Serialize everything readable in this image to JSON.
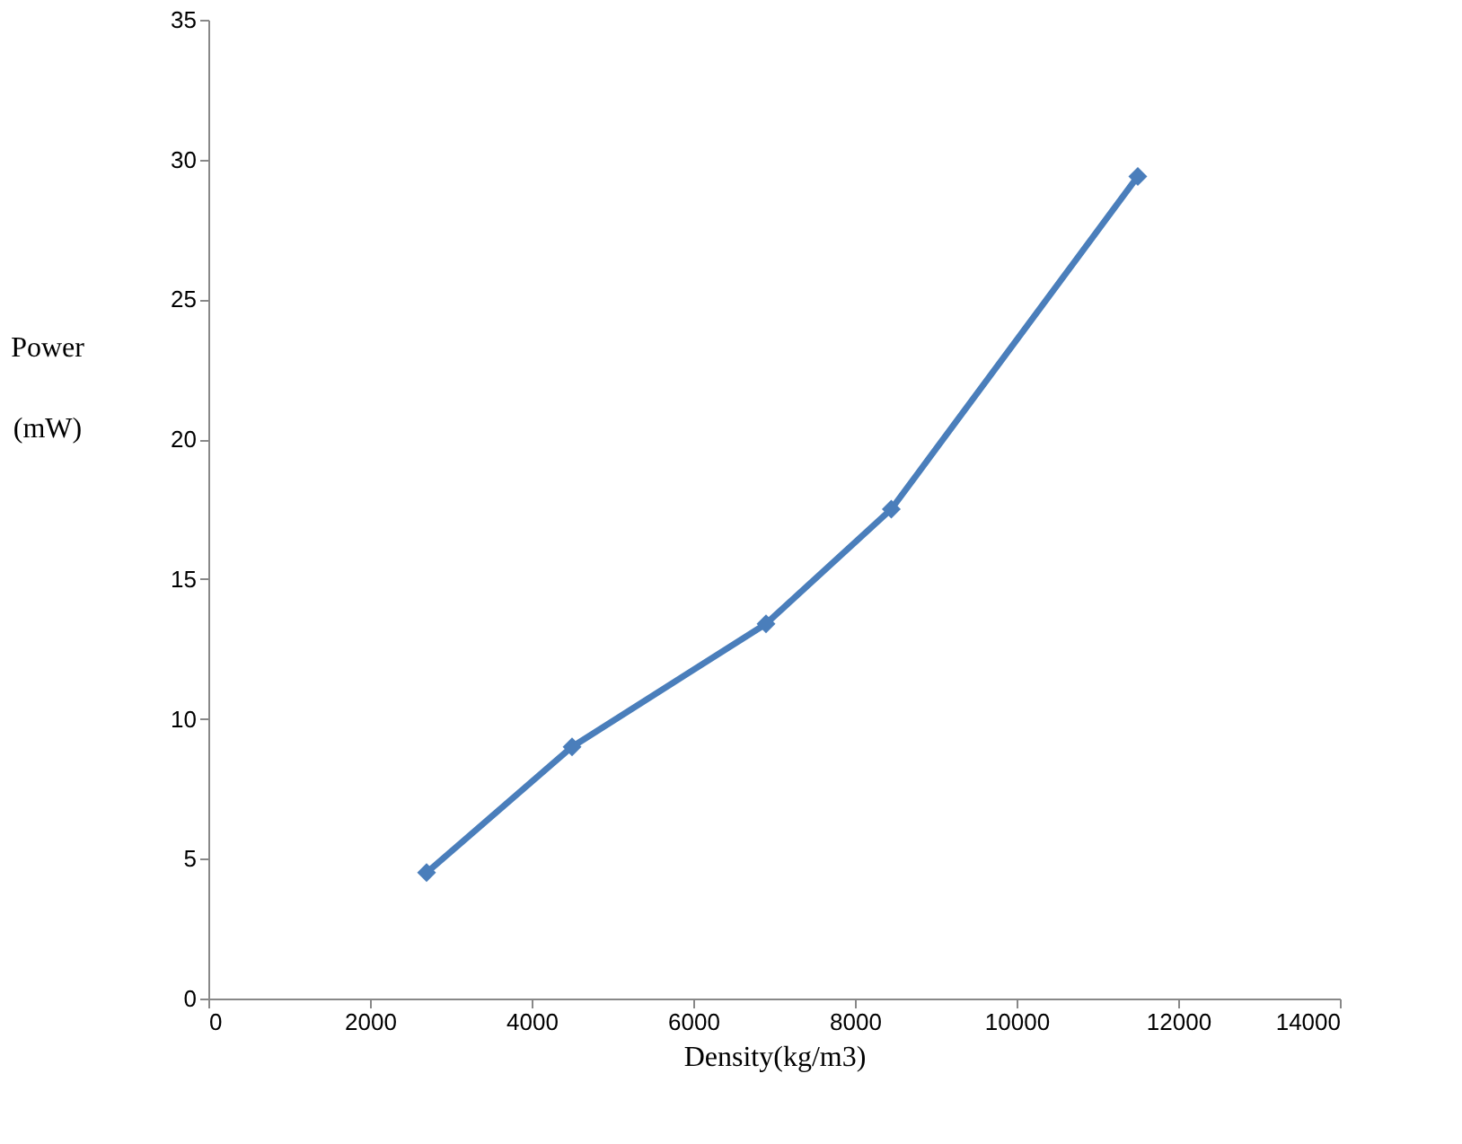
{
  "chart_data": {
    "type": "line",
    "xlabel": "Density(kg/m3)",
    "ylabel": "Power (mW)",
    "x": [
      2700,
      4500,
      6900,
      8450,
      11500
    ],
    "series": [
      {
        "color": "#4a7ebb",
        "values": [
          4.5,
          9.0,
          13.4,
          17.5,
          29.4
        ]
      }
    ],
    "xlim": [
      0,
      14000
    ],
    "xticks": [
      0,
      2000,
      4000,
      6000,
      8000,
      10000,
      12000,
      14000
    ],
    "ylim": [
      0,
      35
    ],
    "yticks": [
      0,
      5,
      10,
      15,
      20,
      25,
      30,
      35
    ],
    "marker": "diamond",
    "line_style": "solid",
    "grid": false,
    "legend": false
  }
}
